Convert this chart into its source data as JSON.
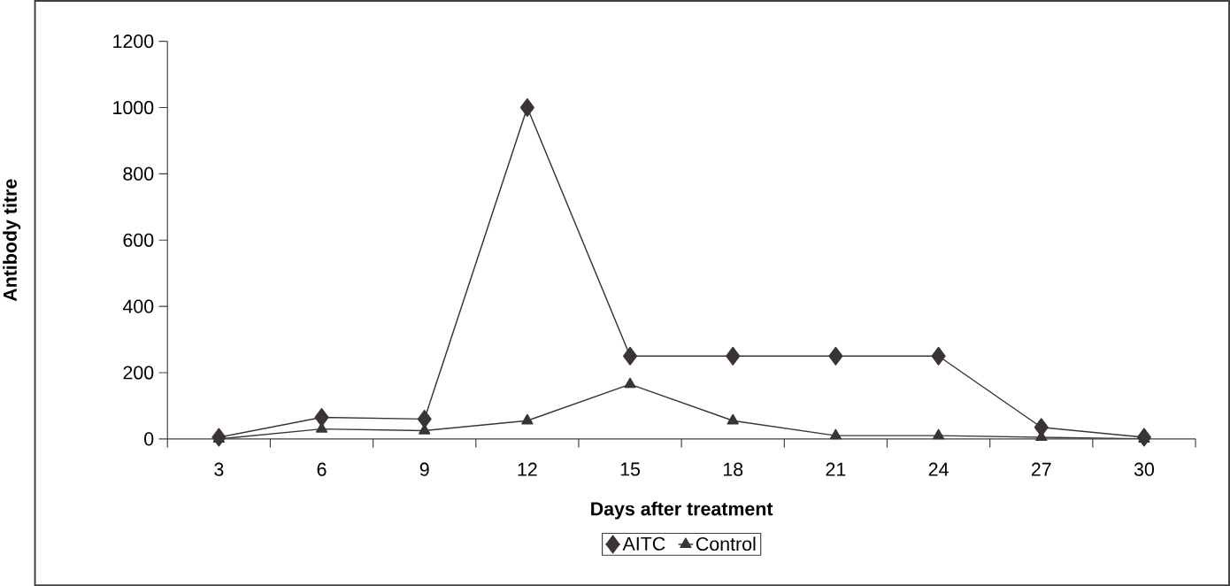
{
  "chart_data": {
    "type": "line",
    "xlabel": "Days after treatment",
    "ylabel": "Antibody titre",
    "categories": [
      "3",
      "6",
      "9",
      "12",
      "15",
      "18",
      "21",
      "24",
      "27",
      "30"
    ],
    "series": [
      {
        "name": "AITC",
        "color": "#3a3434",
        "marker": "diamond",
        "values": [
          5,
          65,
          60,
          1000,
          250,
          250,
          250,
          250,
          35,
          5
        ]
      },
      {
        "name": "Control",
        "color": "#3a3434",
        "marker": "triangle",
        "values": [
          0,
          30,
          25,
          55,
          165,
          55,
          10,
          10,
          5,
          0
        ]
      }
    ],
    "ylim": [
      0,
      1200
    ],
    "yticks": [
      0,
      200,
      400,
      600,
      800,
      1000,
      1200
    ],
    "grid": false,
    "legend": "bottom",
    "line_style": "solid"
  }
}
